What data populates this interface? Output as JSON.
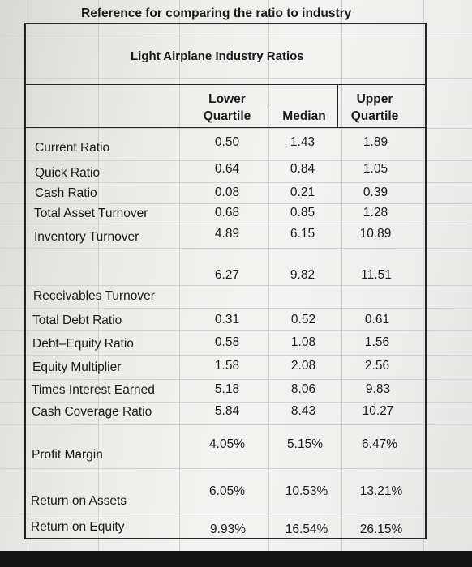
{
  "caption": "Reference for comparing the ratio to industry",
  "table_title": "Light Airplane Industry Ratios",
  "headers": {
    "lower": [
      "Lower",
      "Quartile"
    ],
    "median": "Median",
    "upper": [
      "Upper",
      "Quartile"
    ]
  },
  "labels": [
    "Current Ratio",
    "Quick Ratio",
    "Cash Ratio",
    "Total Asset Turnover",
    "Inventory Turnover",
    "Receivables Turnover",
    "Total Debt Ratio",
    "Debt–Equity Ratio",
    "Equity Multiplier",
    "Times Interest Earned",
    "Cash Coverage Ratio",
    "Profit Margin",
    "Return on Assets",
    "Return on Equity"
  ],
  "values": [
    [
      "0.50",
      "1.43",
      "1.89"
    ],
    [
      "0.64",
      "0.84",
      "1.05"
    ],
    [
      "0.08",
      "0.21",
      "0.39"
    ],
    [
      "0.68",
      "0.85",
      "1.28"
    ],
    [
      "4.89",
      "6.15",
      "10.89"
    ],
    [
      "6.27",
      "9.82",
      "11.51"
    ],
    [
      "0.31",
      "0.52",
      "0.61"
    ],
    [
      "0.58",
      "1.08",
      "1.56"
    ],
    [
      "1.58",
      "2.08",
      "2.56"
    ],
    [
      "5.18",
      "8.06",
      "9.83"
    ],
    [
      "5.84",
      "8.43",
      "10.27"
    ],
    [
      "4.05%",
      "5.15%",
      "6.47%"
    ],
    [
      "6.05%",
      "10.53%",
      "13.21%"
    ],
    [
      "9.93%",
      "16.54%",
      "26.15%"
    ]
  ]
}
